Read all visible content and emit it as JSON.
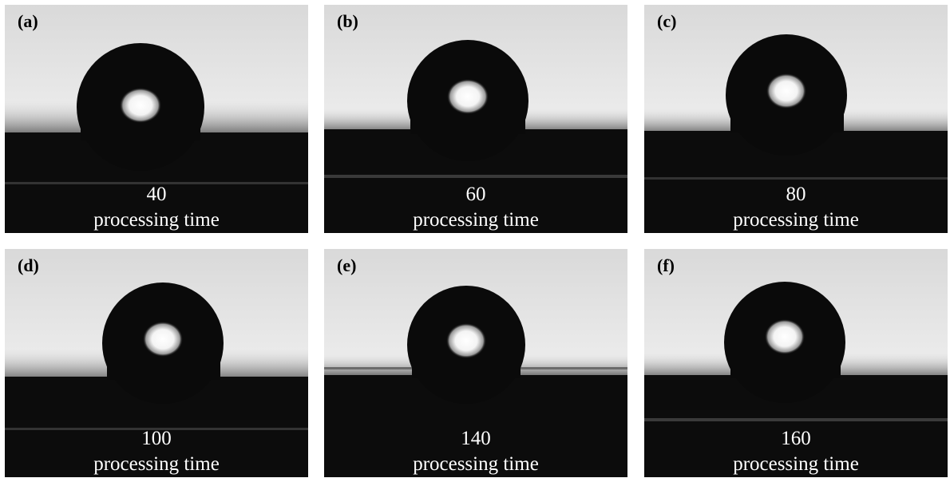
{
  "panels": [
    {
      "label": "(a)",
      "value": "40",
      "caption": "processing time"
    },
    {
      "label": "(b)",
      "value": "60",
      "caption": "processing time"
    },
    {
      "label": "(c)",
      "value": "80",
      "caption": "processing time"
    },
    {
      "label": "(d)",
      "value": "100",
      "caption": "processing time"
    },
    {
      "label": "(e)",
      "value": "140",
      "caption": "processing time"
    },
    {
      "label": "(f)",
      "value": "160",
      "caption": "processing time"
    }
  ]
}
